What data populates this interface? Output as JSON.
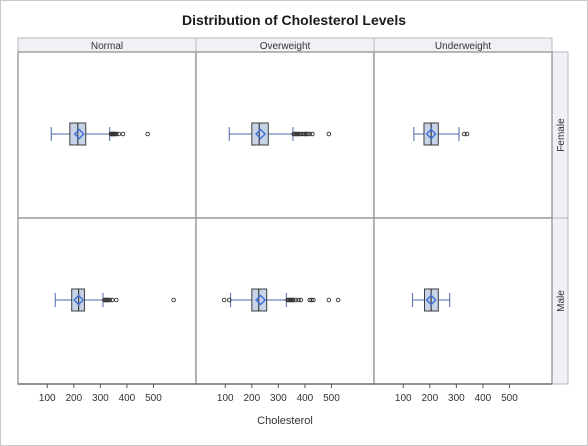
{
  "chart_data": {
    "type": "box",
    "title": "Distribution of Cholesterol Levels",
    "xlabel": "Cholesterol",
    "xlim": [
      50,
      600
    ],
    "xticks": [
      100,
      200,
      300,
      400,
      500
    ],
    "columns": [
      "Normal",
      "Overweight",
      "Underweight"
    ],
    "rows": [
      "Female",
      "Male"
    ],
    "colors": {
      "box_fill": "#c7d3e8",
      "box_stroke": "#3d3d3d",
      "whisker": "#4a6aa6",
      "mean_marker": "#3a6fd6",
      "outlier": "#333333",
      "header_fill": "#f0f0f5",
      "panel_border": "#a0a0a0"
    },
    "panels": [
      {
        "row": "Female",
        "column": "Normal",
        "whisker_low": 115,
        "q1": 185,
        "median": 215,
        "q3": 245,
        "whisker_high": 335,
        "mean": 220,
        "outliers": [
          340,
          342,
          345,
          348,
          350,
          353,
          356,
          360,
          370,
          385,
          478
        ]
      },
      {
        "row": "Female",
        "column": "Overweight",
        "whisker_low": 115,
        "q1": 200,
        "median": 228,
        "q3": 262,
        "whisker_high": 355,
        "mean": 233,
        "outliers": [
          358,
          362,
          366,
          370,
          375,
          380,
          386,
          395,
          400,
          405,
          410,
          418,
          428,
          490
        ]
      },
      {
        "row": "Female",
        "column": "Underweight",
        "whisker_low": 140,
        "q1": 178,
        "median": 205,
        "q3": 232,
        "whisker_high": 310,
        "mean": 205,
        "outliers": [
          330,
          340
        ]
      },
      {
        "row": "Male",
        "column": "Normal",
        "whisker_low": 130,
        "q1": 192,
        "median": 218,
        "q3": 240,
        "whisker_high": 310,
        "mean": 218,
        "outliers": [
          315,
          318,
          322,
          326,
          330,
          336,
          345,
          360,
          576
        ]
      },
      {
        "row": "Male",
        "column": "Overweight",
        "whisker_low": 120,
        "q1": 200,
        "median": 226,
        "q3": 256,
        "whisker_high": 330,
        "mean": 233,
        "outliers": [
          96,
          115,
          335,
          338,
          342,
          345,
          348,
          352,
          356,
          366,
          376,
          385,
          418,
          425,
          432,
          490,
          525
        ]
      },
      {
        "row": "Male",
        "column": "Underweight",
        "whisker_low": 135,
        "q1": 180,
        "median": 205,
        "q3": 232,
        "whisker_high": 275,
        "mean": 205,
        "outliers": []
      }
    ]
  }
}
